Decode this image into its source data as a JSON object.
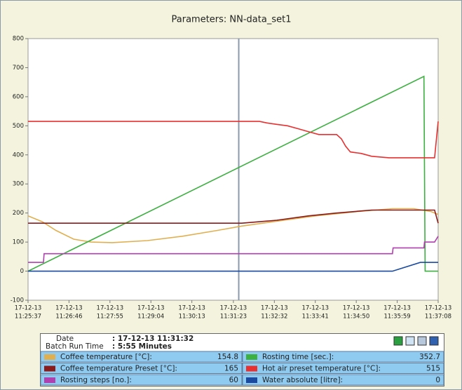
{
  "chart_data": {
    "type": "line",
    "title": "Parameters: NN-data_set1",
    "xlim": [
      "11:25:37",
      "11:37:08"
    ],
    "xticks": [
      {
        "date": "17-12-13",
        "time": "11:25:37"
      },
      {
        "date": "17-12-13",
        "time": "11:26:46"
      },
      {
        "date": "17-12-13",
        "time": "11:27:55"
      },
      {
        "date": "17-12-13",
        "time": "11:29:04"
      },
      {
        "date": "17-12-13",
        "time": "11:30:13"
      },
      {
        "date": "17-12-13",
        "time": "11:31:23"
      },
      {
        "date": "17-12-13",
        "time": "11:32:32"
      },
      {
        "date": "17-12-13",
        "time": "11:33:41"
      },
      {
        "date": "17-12-13",
        "time": "11:34:50"
      },
      {
        "date": "17-12-13",
        "time": "11:35:59"
      },
      {
        "date": "17-12-13",
        "time": "11:37:08"
      }
    ],
    "ylim": [
      -100,
      800
    ],
    "yticks": [
      -100,
      0,
      100,
      200,
      300,
      400,
      500,
      600,
      700,
      800
    ],
    "readout": {
      "date_label": "Date",
      "date": ": 17-12-13 11:31:32",
      "batch_label": "Batch Run Time",
      "batch": ": 5:55 Minutes"
    },
    "series": [
      {
        "name": "Coffee temperature [°C]:",
        "color": "#e0b050",
        "readout": "154.8",
        "x": [
          "11:25:37",
          "11:26:01",
          "11:26:24",
          "11:26:54",
          "11:27:23",
          "11:27:59",
          "11:28:58",
          "11:29:57",
          "11:30:56",
          "11:31:37",
          "11:32:30",
          "11:33:41",
          "11:34:52",
          "11:35:51",
          "11:36:27",
          "11:36:56",
          "11:37:08"
        ],
        "values": [
          190,
          170,
          140,
          110,
          100,
          98,
          105,
          120,
          140,
          155,
          170,
          190,
          205,
          215,
          215,
          205,
          195
        ]
      },
      {
        "name": "Rosting time [sec.]:",
        "color": "#3cb040",
        "readout": "352.7",
        "x": [
          "11:25:37",
          "11:36:44",
          "11:36:46",
          "11:37:08"
        ],
        "values": [
          0,
          670,
          0,
          0
        ]
      },
      {
        "name": "Coffee temperature Preset [°C]:",
        "color": "#8b1a1a",
        "readout": "165",
        "x": [
          "11:25:37",
          "11:31:37",
          "11:32:36",
          "11:33:29",
          "11:34:17",
          "11:35:16",
          "11:37:02",
          "11:37:08"
        ],
        "values": [
          165,
          165,
          175,
          190,
          200,
          210,
          210,
          165
        ]
      },
      {
        "name": "Hot air preset temperature [°C]:",
        "color": "#e83030",
        "readout": "515",
        "x": [
          "11:25:37",
          "11:32:07",
          "11:32:19",
          "11:32:36",
          "11:32:54",
          "11:33:12",
          "11:33:29",
          "11:33:47",
          "11:34:17",
          "11:34:25",
          "11:34:32",
          "11:34:40",
          "11:34:58",
          "11:35:16",
          "11:35:45",
          "11:37:02",
          "11:37:08"
        ],
        "values": [
          515,
          515,
          510,
          505,
          500,
          490,
          480,
          470,
          470,
          455,
          430,
          410,
          405,
          395,
          390,
          390,
          515
        ]
      },
      {
        "name": "Rosting steps [no.]:",
        "color": "#b040b0",
        "readout": "60",
        "x": [
          "11:25:37",
          "11:26:03",
          "11:26:04",
          "11:35:51",
          "11:35:52",
          "11:36:44",
          "11:36:45",
          "11:37:02",
          "11:37:08"
        ],
        "values": [
          30,
          30,
          60,
          60,
          80,
          80,
          100,
          100,
          120
        ]
      },
      {
        "name": "Water absolute [litre]:",
        "color": "#1a4aa0",
        "readout": "0",
        "x": [
          "11:25:37",
          "11:35:51",
          "11:36:38",
          "11:37:08"
        ],
        "values": [
          0,
          0,
          30,
          30
        ]
      }
    ]
  }
}
